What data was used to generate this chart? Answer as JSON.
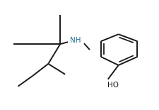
{
  "bg_color": "#ffffff",
  "line_color": "#1a1a1a",
  "line_width": 1.4,
  "text_color_nh": "#1a7090",
  "text_color_ho": "#1a1a1a",
  "nh_label": "NH",
  "ho_label": "HO",
  "figsize": [
    2.26,
    1.55
  ],
  "dpi": 100,
  "nh_fontsize": 7.5,
  "ho_fontsize": 7.5
}
